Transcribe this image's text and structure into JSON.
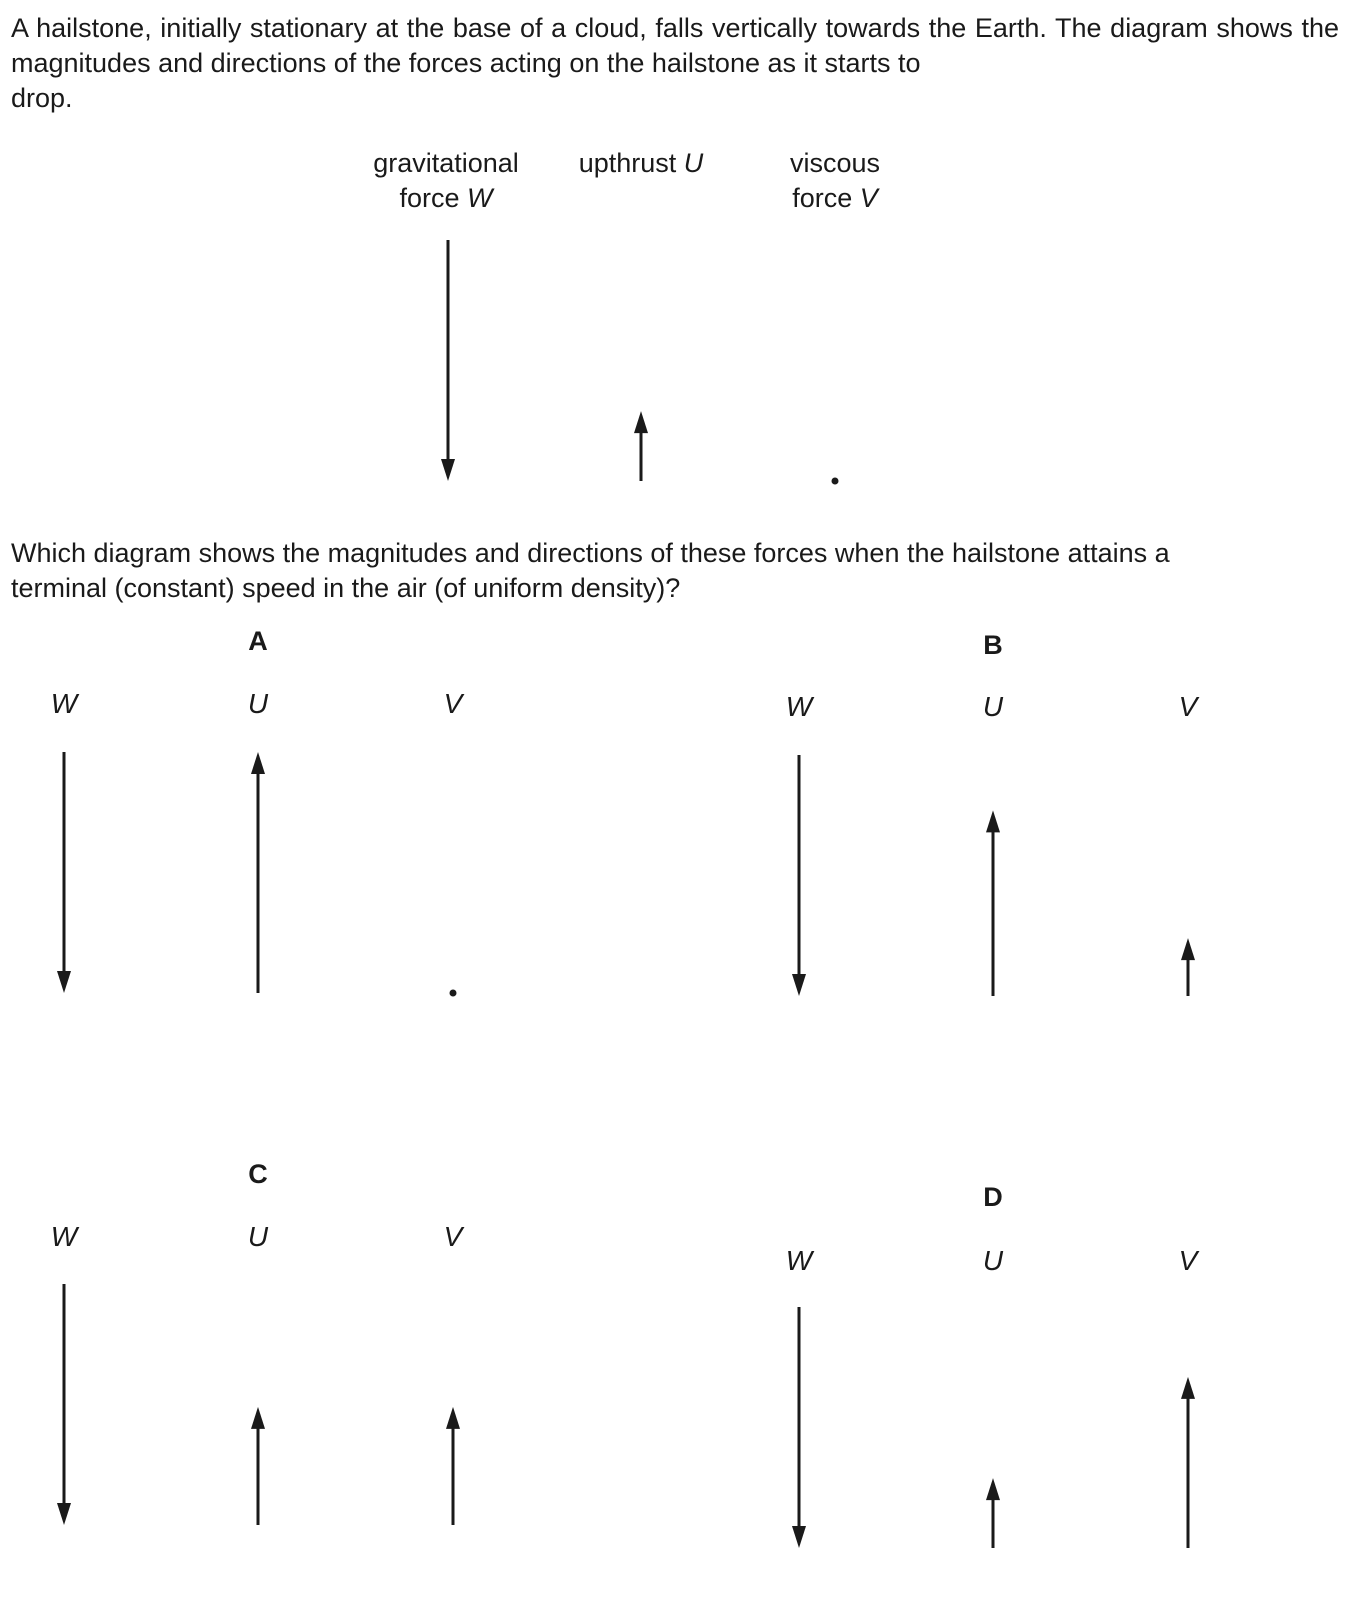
{
  "intro": {
    "line1": "A hailstone, initially stationary at the base of a cloud, falls vertically towards the Earth. The",
    "line2": "diagram shows the magnitudes and directions of the forces acting on the hailstone as it starts to",
    "line3": "drop."
  },
  "initial_diagram": {
    "gravitational": {
      "line1": "gravitational",
      "line2_text": "force ",
      "symbol": "W",
      "direction": "down",
      "magnitude": 1.0
    },
    "upthrust": {
      "text": "upthrust ",
      "symbol": "U",
      "direction": "up",
      "magnitude": 0.29
    },
    "viscous": {
      "line1": "viscous",
      "line2_text": "force ",
      "symbol": "V",
      "direction": "none",
      "magnitude": 0
    }
  },
  "question": {
    "line1": "Which diagram shows the magnitudes and directions of these forces when the hailstone attains a",
    "line2": "terminal (constant) speed in the air (of uniform density)?"
  },
  "options": [
    {
      "letter": "A",
      "forces": [
        {
          "symbol": "W",
          "direction": "down",
          "magnitude": 1.0
        },
        {
          "symbol": "U",
          "direction": "up",
          "magnitude": 1.0
        },
        {
          "symbol": "V",
          "direction": "none",
          "magnitude": 0
        }
      ]
    },
    {
      "letter": "B",
      "forces": [
        {
          "symbol": "W",
          "direction": "down",
          "magnitude": 1.0
        },
        {
          "symbol": "U",
          "direction": "up",
          "magnitude": 0.77
        },
        {
          "symbol": "V",
          "direction": "up",
          "magnitude": 0.24
        }
      ]
    },
    {
      "letter": "C",
      "forces": [
        {
          "symbol": "W",
          "direction": "down",
          "magnitude": 1.0
        },
        {
          "symbol": "U",
          "direction": "up",
          "magnitude": 0.49
        },
        {
          "symbol": "V",
          "direction": "up",
          "magnitude": 0.49
        }
      ]
    },
    {
      "letter": "D",
      "forces": [
        {
          "symbol": "W",
          "direction": "down",
          "magnitude": 1.0
        },
        {
          "symbol": "U",
          "direction": "up",
          "magnitude": 0.29
        },
        {
          "symbol": "V",
          "direction": "up",
          "magnitude": 0.71
        }
      ]
    }
  ]
}
